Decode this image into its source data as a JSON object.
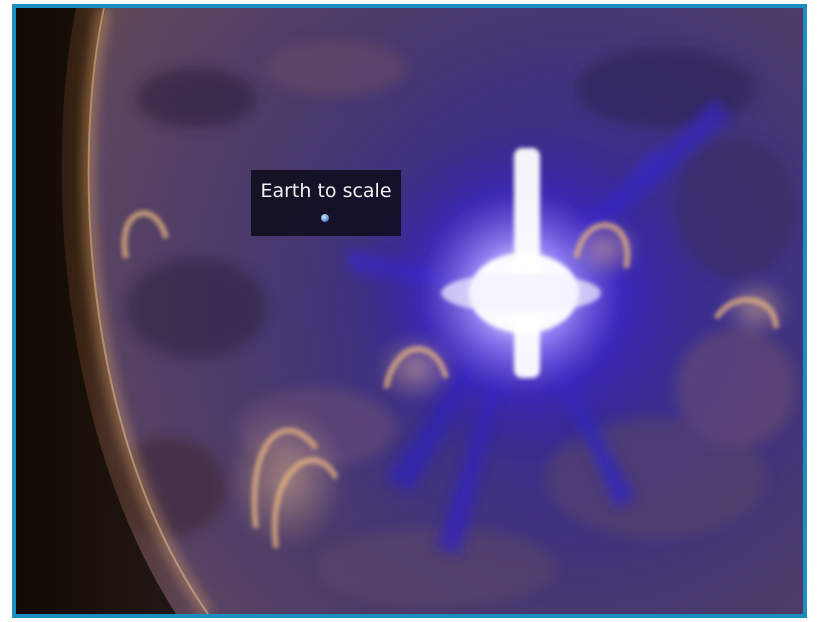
{
  "image": {
    "caption_label": "Earth to scale",
    "frame_color": "#1a8ec0",
    "palette": {
      "flare_core": "#ffffff",
      "active_region": "#3b2aa8",
      "corona": "#b9835a",
      "limb": "#d9a36b",
      "space": "#000000"
    }
  }
}
